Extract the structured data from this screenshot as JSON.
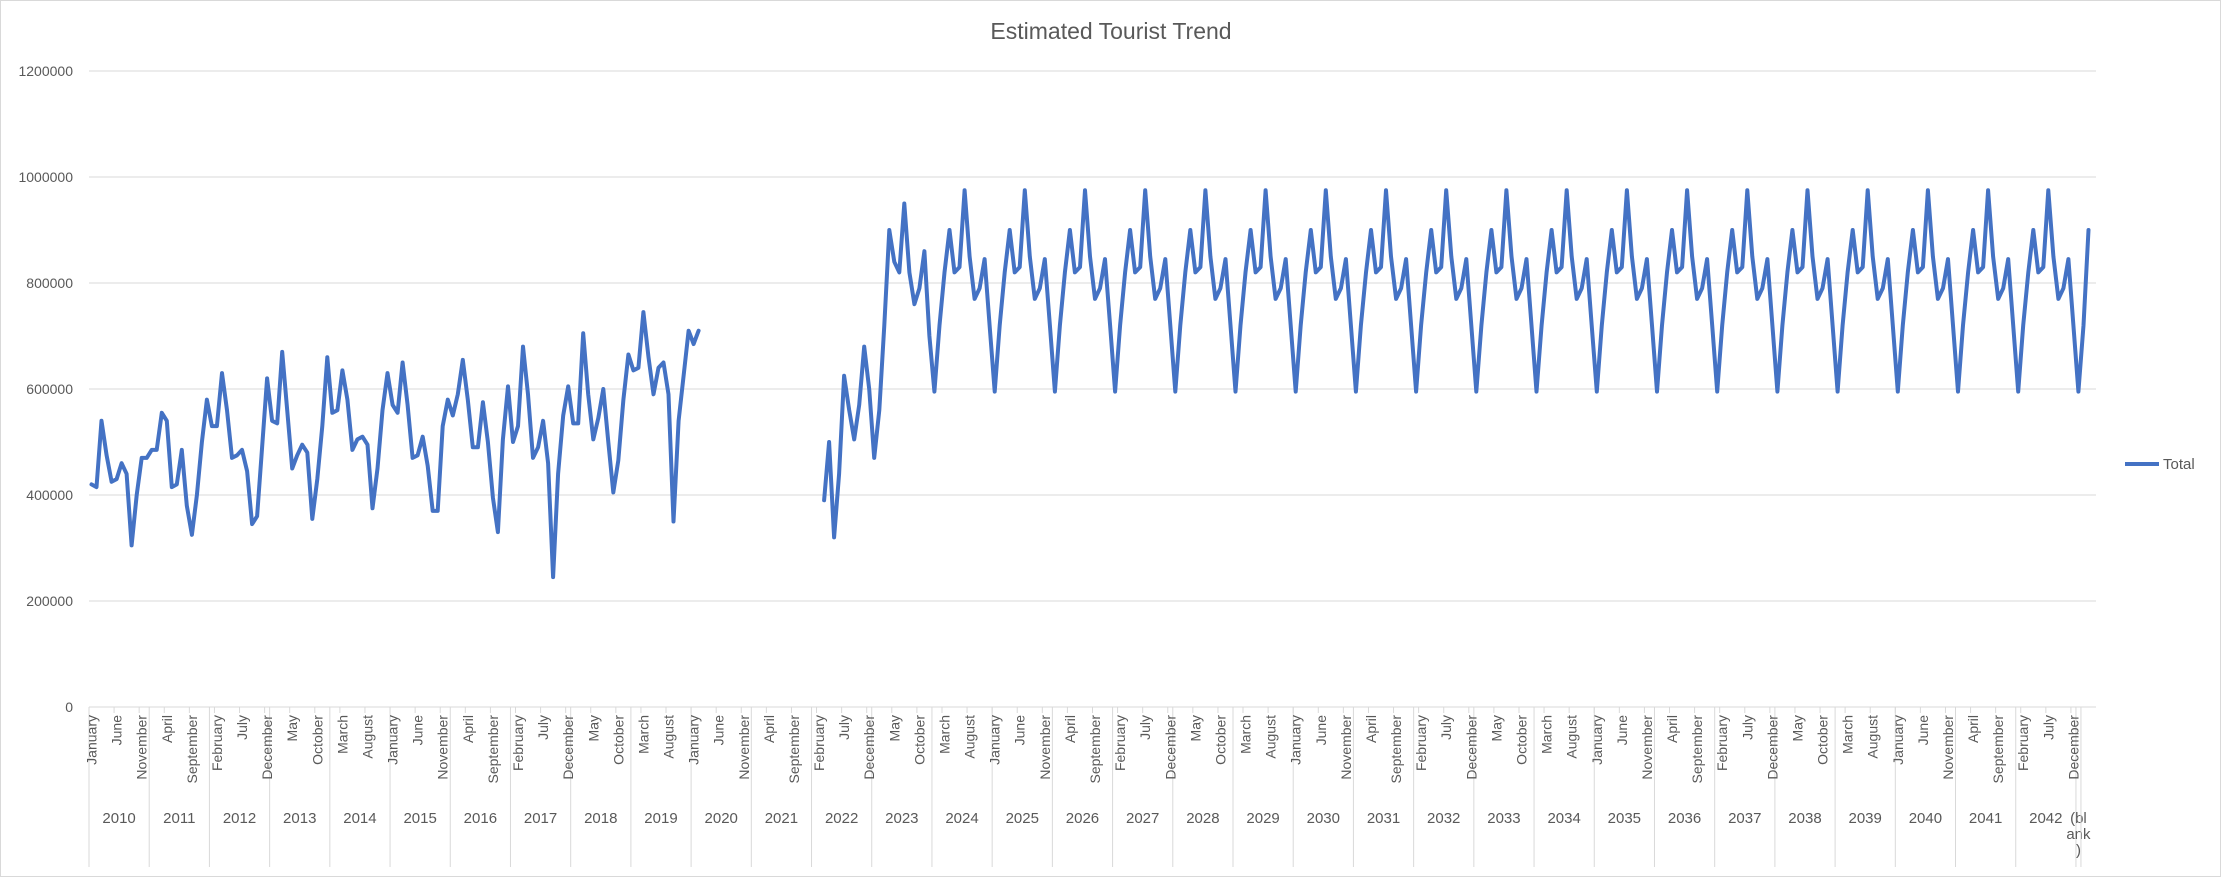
{
  "chart_data": {
    "type": "line",
    "title": "Estimated Tourist Trend",
    "xlabel": "",
    "ylabel": "",
    "ylim": [
      0,
      1200000
    ],
    "yticks": [
      0,
      200000,
      400000,
      600000,
      800000,
      1000000,
      1200000
    ],
    "ytick_labels": [
      "0",
      "200000",
      "400000",
      "600000",
      "800000",
      "1000000",
      "1200000"
    ],
    "grid": true,
    "legend_position": "right",
    "colors": {
      "series": "#4472c4",
      "grid": "#d9d9d9",
      "text": "#595959"
    },
    "years": [
      "2010",
      "2011",
      "2012",
      "2013",
      "2014",
      "2015",
      "2016",
      "2017",
      "2018",
      "2019",
      "2020",
      "2021",
      "2022",
      "2023",
      "2024",
      "2025",
      "2026",
      "2027",
      "2028",
      "2029",
      "2030",
      "2031",
      "2032",
      "2033",
      "2034",
      "2035",
      "2036",
      "2037",
      "2038",
      "2039",
      "2040",
      "2041",
      "2042",
      "(blank)"
    ],
    "month_tick_labels": [
      "January",
      "June",
      "November",
      "April",
      "September",
      "February",
      "July",
      "December",
      "May",
      "October",
      "March",
      "August",
      "January",
      "June",
      "November",
      "April",
      "September",
      "February",
      "July",
      "December",
      "May",
      "October",
      "March",
      "August",
      "January",
      "June",
      "November",
      "April",
      "September",
      "February",
      "July",
      "December",
      "May",
      "October",
      "March",
      "August",
      "January",
      "June",
      "November",
      "April",
      "September",
      "February",
      "July",
      "December",
      "May",
      "October",
      "March",
      "August",
      "January",
      "June",
      "November",
      "April",
      "September",
      "February",
      "July",
      "December",
      "May",
      "October",
      "March",
      "August",
      "January",
      "June",
      "November",
      "April",
      "September",
      "February",
      "July",
      "December",
      "May",
      "October",
      "March",
      "August",
      "January",
      "June",
      "November",
      "April",
      "September",
      "February",
      "July",
      "December"
    ],
    "series": [
      {
        "name": "Total",
        "values": [
          420000,
          415000,
          540000,
          475000,
          425000,
          430000,
          460000,
          440000,
          305000,
          400000,
          470000,
          470000,
          485000,
          485000,
          555000,
          540000,
          415000,
          420000,
          485000,
          380000,
          325000,
          400000,
          500000,
          580000,
          530000,
          530000,
          630000,
          560000,
          470000,
          475000,
          485000,
          445000,
          345000,
          360000,
          490000,
          620000,
          540000,
          535000,
          670000,
          560000,
          450000,
          475000,
          495000,
          480000,
          355000,
          430000,
          530000,
          660000,
          555000,
          560000,
          635000,
          580000,
          485000,
          505000,
          510000,
          495000,
          375000,
          450000,
          560000,
          630000,
          570000,
          555000,
          650000,
          570000,
          470000,
          475000,
          510000,
          455000,
          370000,
          370000,
          530000,
          580000,
          550000,
          590000,
          655000,
          580000,
          490000,
          490000,
          575000,
          500000,
          395000,
          330000,
          505000,
          605000,
          500000,
          530000,
          680000,
          590000,
          470000,
          490000,
          540000,
          460000,
          245000,
          440000,
          550000,
          605000,
          535000,
          535000,
          705000,
          590000,
          505000,
          545000,
          600000,
          500000,
          405000,
          465000,
          580000,
          665000,
          635000,
          640000,
          745000,
          660000,
          590000,
          640000,
          650000,
          590000,
          350000,
          540000,
          625000,
          710000,
          685000,
          710000,
          null,
          null,
          null,
          null,
          null,
          null,
          null,
          null,
          null,
          null,
          null,
          null,
          null,
          null,
          null,
          null,
          null,
          null,
          null,
          null,
          null,
          null,
          null,
          null,
          390000,
          500000,
          320000,
          440000,
          625000,
          560000,
          505000,
          570000,
          680000,
          600000,
          470000,
          560000,
          720000,
          900000,
          840000,
          820000,
          950000,
          820000,
          760000,
          790000,
          860000,
          700000,
          595000,
          720000,
          820000,
          900000,
          820000,
          830000,
          975000,
          850000,
          770000,
          790000,
          845000,
          720000,
          595000,
          720000,
          820000,
          900000,
          820000,
          830000,
          975000,
          850000,
          770000,
          790000,
          845000,
          720000,
          595000,
          720000,
          820000,
          900000,
          820000,
          830000,
          975000,
          850000,
          770000,
          790000,
          845000,
          720000,
          595000,
          720000,
          820000,
          900000,
          820000,
          830000,
          975000,
          850000,
          770000,
          790000,
          845000,
          720000,
          595000,
          720000,
          820000,
          900000,
          820000,
          830000,
          975000,
          850000,
          770000,
          790000,
          845000,
          720000,
          595000,
          720000,
          820000,
          900000,
          820000,
          830000,
          975000,
          850000,
          770000,
          790000,
          845000,
          720000,
          595000,
          720000,
          820000,
          900000,
          820000,
          830000,
          975000,
          850000,
          770000,
          790000,
          845000,
          720000,
          595000,
          720000,
          820000,
          900000,
          820000,
          830000,
          975000,
          850000,
          770000,
          790000,
          845000,
          720000,
          595000,
          720000,
          820000,
          900000,
          820000,
          830000,
          975000,
          850000,
          770000,
          790000,
          845000,
          720000,
          595000,
          720000,
          820000,
          900000,
          820000,
          830000,
          975000,
          850000,
          770000,
          790000,
          845000,
          720000,
          595000,
          720000,
          820000,
          900000,
          820000,
          830000,
          975000,
          850000,
          770000,
          790000,
          845000,
          720000,
          595000,
          720000,
          820000,
          900000,
          820000,
          830000,
          975000,
          850000,
          770000,
          790000,
          845000,
          720000,
          595000,
          720000,
          820000,
          900000,
          820000,
          830000,
          975000,
          850000,
          770000,
          790000,
          845000,
          720000,
          595000,
          720000,
          820000,
          900000,
          820000,
          830000,
          975000,
          850000,
          770000,
          790000,
          845000,
          720000,
          595000,
          720000,
          820000,
          900000,
          820000,
          830000,
          975000,
          850000,
          770000,
          790000,
          845000,
          720000,
          595000,
          720000,
          820000,
          900000,
          820000,
          830000,
          975000,
          850000,
          770000,
          790000,
          845000,
          720000,
          595000,
          720000,
          820000,
          900000,
          820000,
          830000,
          975000,
          850000,
          770000,
          790000,
          845000,
          720000,
          595000,
          720000,
          820000,
          900000,
          820000,
          830000,
          975000,
          850000,
          770000,
          790000,
          845000,
          720000,
          595000,
          720000,
          820000,
          900000,
          820000,
          830000,
          975000,
          850000,
          770000,
          790000,
          845000,
          720000,
          595000,
          720000,
          900000
        ]
      }
    ]
  }
}
